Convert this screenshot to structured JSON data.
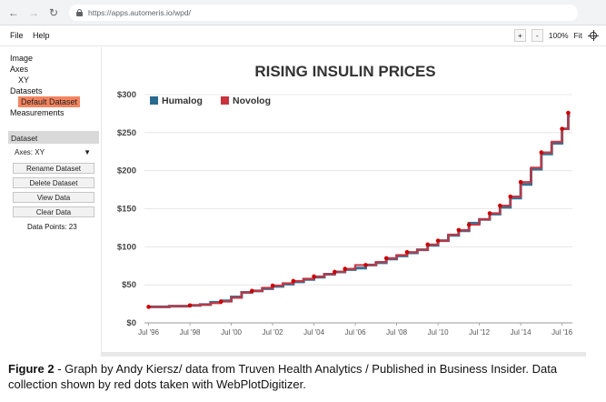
{
  "browser": {
    "url": "https://apps.automeris.io/wpd/"
  },
  "menu": {
    "file": "File",
    "help": "Help",
    "zoom_in": "+",
    "zoom_out": "-",
    "zoom_level": "100%",
    "fit": "Fit"
  },
  "sidebar": {
    "tree": {
      "image": "Image",
      "axes": "Axes",
      "xy": "XY",
      "datasets": "Datasets",
      "default_dataset": "Default Dataset",
      "measurements": "Measurements"
    },
    "dataset_section": "Dataset",
    "axes_label": "Axes:",
    "axes_value": "XY",
    "buttons": {
      "rename": "Rename Dataset",
      "delete": "Delete Dataset",
      "view": "View Data",
      "clear": "Clear Data"
    },
    "data_points": "Data Points: 23"
  },
  "caption": {
    "label": "Figure 2",
    "text": " - Graph by Andy Kiersz/ data from Truven Health Analytics / Published in Business Insider. Data collection shown by red dots taken with WebPlotDigitizer."
  },
  "colors": {
    "humalog": "#2b6a8e",
    "novolog": "#c8333f",
    "marker": "#cc0000",
    "selected": "#f4845f"
  },
  "chart_data": {
    "type": "line",
    "title": "RISING INSULIN PRICES",
    "x_tick_labels": [
      "Jul '96",
      "Jul '98",
      "Jul '00",
      "Jul '02",
      "Jul '04",
      "Jul '06",
      "Jul '08",
      "Jul '10",
      "Jul '12",
      "Jul '14",
      "Jul '16"
    ],
    "y_tick_labels": [
      "$0",
      "$50",
      "$100",
      "$150",
      "$200",
      "$250",
      "$300"
    ],
    "xlim": [
      1996.3,
      2017.0
    ],
    "ylim": [
      0,
      300
    ],
    "legend": "top-left",
    "series": [
      {
        "name": "Humalog",
        "color": "#2b6a8e",
        "x": [
          1996.5,
          1997.5,
          1998.5,
          1999.0,
          1999.5,
          2000.0,
          2000.5,
          2001.0,
          2001.5,
          2002.0,
          2002.5,
          2003.0,
          2003.5,
          2004.0,
          2004.5,
          2005.0,
          2005.5,
          2006.0,
          2006.5,
          2007.0,
          2007.5,
          2008.0,
          2008.5,
          2009.0,
          2009.5,
          2010.0,
          2010.5,
          2011.0,
          2011.5,
          2012.0,
          2012.5,
          2013.0,
          2013.5,
          2014.0,
          2014.5,
          2015.0,
          2015.5,
          2016.0,
          2016.5,
          2016.8
        ],
        "y": [
          21,
          22,
          23,
          24,
          27,
          29,
          34,
          40,
          42,
          45,
          48,
          51,
          54,
          57,
          60,
          64,
          67,
          70,
          72,
          76,
          79,
          84,
          88,
          92,
          96,
          102,
          108,
          115,
          121,
          131,
          136,
          143,
          152,
          164,
          182,
          202,
          222,
          236,
          255,
          272
        ]
      },
      {
        "name": "Novolog",
        "color": "#c8333f",
        "x": [
          1996.5,
          1997.5,
          1998.5,
          1999.0,
          1999.5,
          2000.0,
          2000.5,
          2001.0,
          2001.5,
          2002.0,
          2002.5,
          2003.0,
          2003.5,
          2004.0,
          2004.5,
          2005.0,
          2005.5,
          2006.0,
          2006.5,
          2007.0,
          2007.5,
          2008.0,
          2008.5,
          2009.0,
          2009.5,
          2010.0,
          2010.5,
          2011.0,
          2011.5,
          2012.0,
          2012.5,
          2013.0,
          2013.5,
          2014.0,
          2014.5,
          2015.0,
          2015.5,
          2016.0,
          2016.5,
          2016.8
        ],
        "y": [
          21,
          22,
          23,
          24,
          26,
          28,
          33,
          40,
          42,
          46,
          49,
          52,
          55,
          58,
          61,
          64,
          67,
          71,
          76,
          76,
          80,
          85,
          89,
          93,
          96,
          103,
          108,
          116,
          122,
          129,
          136,
          144,
          154,
          166,
          185,
          204,
          224,
          238,
          255,
          276
        ]
      }
    ],
    "digitized_points": {
      "x": [
        1996.5,
        1998.5,
        2000.0,
        2001.5,
        2002.5,
        2003.5,
        2004.5,
        2005.5,
        2006.0,
        2007.0,
        2008.0,
        2009.0,
        2010.0,
        2010.5,
        2011.5,
        2012.0,
        2013.0,
        2013.5,
        2014.0,
        2014.5,
        2015.5,
        2016.5,
        2016.8
      ],
      "y": [
        21,
        23,
        28,
        42,
        49,
        55,
        61,
        67,
        71,
        76,
        85,
        93,
        103,
        108,
        122,
        129,
        144,
        154,
        166,
        185,
        224,
        255,
        276
      ]
    }
  }
}
